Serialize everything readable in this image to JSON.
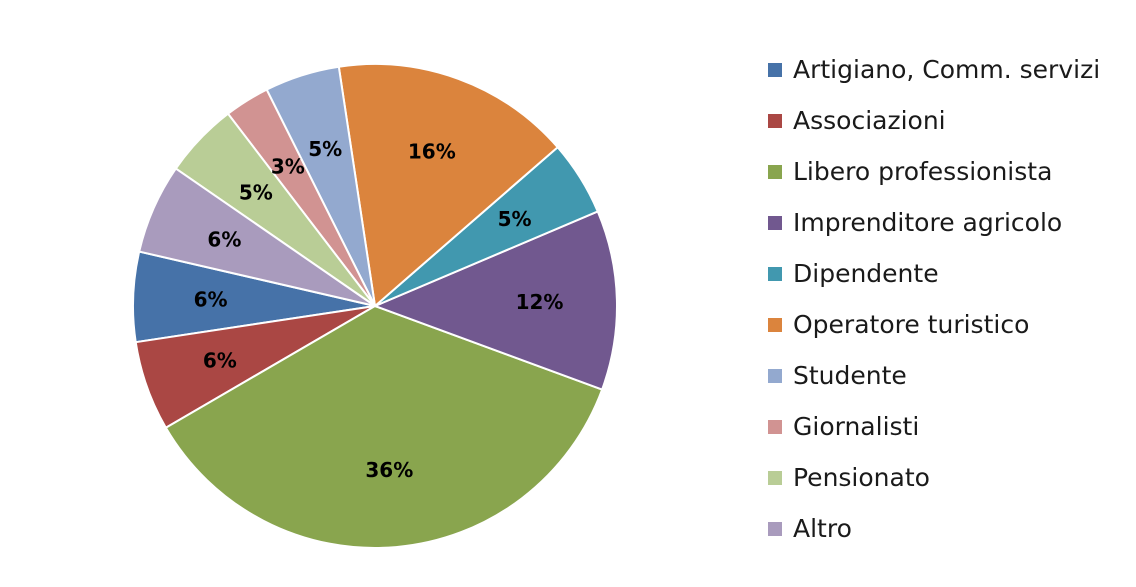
{
  "chart_data": {
    "type": "pie",
    "start_angle_deg": 167,
    "direction": "counterclockwise",
    "legend_position": "right",
    "slices": [
      {
        "label": "Artigiano, Comm. servizi",
        "value": 6,
        "value_label": "6%",
        "color": "#4672A8"
      },
      {
        "label": "Associazioni",
        "value": 6,
        "value_label": "6%",
        "color": "#AA4744"
      },
      {
        "label": "Libero professionista",
        "value": 36,
        "value_label": "36%",
        "color": "#89A54E"
      },
      {
        "label": "Imprenditore agricolo",
        "value": 12,
        "value_label": "12%",
        "color": "#71588F"
      },
      {
        "label": "Dipendente",
        "value": 5,
        "value_label": "5%",
        "color": "#4198AF"
      },
      {
        "label": "Operatore turistico",
        "value": 16,
        "value_label": "16%",
        "color": "#DB843D"
      },
      {
        "label": "Studente",
        "value": 5,
        "value_label": "5%",
        "color": "#93A9CF"
      },
      {
        "label": "Giornalisti",
        "value": 3,
        "value_label": "3%",
        "color": "#D19392"
      },
      {
        "label": "Pensionato",
        "value": 5,
        "value_label": "5%",
        "color": "#B9CD96"
      },
      {
        "label": "Altro",
        "value": 6,
        "value_label": "6%",
        "color": "#A99BBD"
      }
    ]
  }
}
